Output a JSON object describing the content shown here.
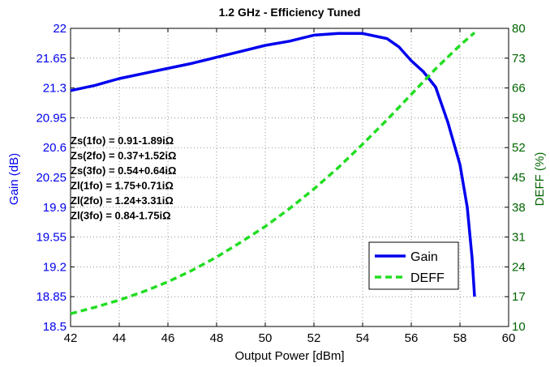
{
  "chart_data": {
    "type": "line",
    "title": "1.2 GHz - Efficiency Tuned",
    "xlabel": "Output Power [dBm]",
    "ylabel_left": "Gain (dB)",
    "ylabel_right": "DEFF (%)",
    "xlim": [
      42,
      60
    ],
    "ylim_left": [
      18.5,
      22
    ],
    "ylim_right": [
      10,
      80
    ],
    "x_ticks": [
      "42",
      "44",
      "46",
      "48",
      "50",
      "52",
      "54",
      "56",
      "58",
      "60"
    ],
    "y_left_ticks": [
      "18.5",
      "18.85",
      "19.2",
      "19.55",
      "19.9",
      "20.25",
      "20.6",
      "20.95",
      "21.3",
      "21.65",
      "22"
    ],
    "y_right_ticks": [
      "10",
      "17",
      "24",
      "31",
      "38",
      "45",
      "52",
      "59",
      "66",
      "73",
      "80"
    ],
    "grid": true,
    "legend_position": "bottom-right",
    "colors": {
      "gain": "#0000ee",
      "deff": "#22dd22",
      "right_axis": "#006400"
    },
    "annotations": [
      "Zs(1fo) = 0.91-1.89iΩ",
      "Zs(2fo) = 0.37+1.52iΩ",
      "Zs(3fo) = 0.54+0.64iΩ",
      "Zl(1fo) = 1.75+0.71iΩ",
      "Zl(2fo) = 1.24+3.31iΩ",
      "Zl(3fo) = 0.84-1.75iΩ"
    ],
    "series": [
      {
        "name": "Gain",
        "axis": "left",
        "x": [
          42,
          43,
          44,
          45,
          46,
          47,
          48,
          49,
          50,
          51,
          52,
          53,
          54,
          55,
          55.5,
          56,
          56.5,
          57,
          57.5,
          58,
          58.3,
          58.5,
          58.6
        ],
        "y": [
          21.27,
          21.33,
          21.41,
          21.47,
          21.53,
          21.59,
          21.66,
          21.73,
          21.8,
          21.85,
          21.92,
          21.94,
          21.94,
          21.88,
          21.78,
          21.62,
          21.49,
          21.31,
          20.9,
          20.4,
          19.9,
          19.3,
          18.85
        ]
      },
      {
        "name": "DEFF",
        "axis": "right",
        "x": [
          42,
          43,
          44,
          45,
          46,
          47,
          48,
          49,
          50,
          51,
          52,
          53,
          54,
          55,
          56,
          57,
          58,
          58.6
        ],
        "y": [
          13.0,
          14.5,
          16.2,
          18.2,
          20.5,
          23.2,
          26.3,
          29.8,
          33.5,
          37.7,
          42.3,
          47.3,
          52.8,
          58.5,
          64.5,
          70.5,
          76.0,
          79.0
        ]
      }
    ]
  }
}
